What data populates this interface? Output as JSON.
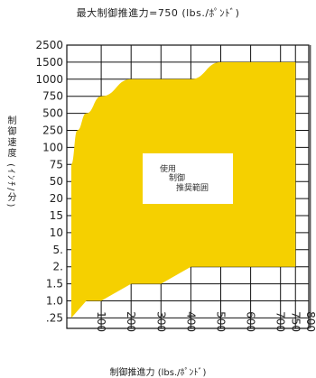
{
  "chart_data": {
    "type": "area",
    "title": "最大制御推進力=750 (lbs./ﾎﾟﾝﾄﾞ)",
    "xlabel": "制御推進力 (lbs./ﾎﾟﾝﾄﾞ)",
    "ylabel": "制御速度 (ｲﾝﾁ/分)",
    "x_ticks": [
      100,
      200,
      300,
      400,
      500,
      600,
      700,
      750,
      800
    ],
    "y_ticks": [
      ".25",
      "1.0",
      "1.5",
      "2.",
      "5.",
      "10",
      "15",
      "20",
      "50",
      "75",
      "100",
      "250",
      "500",
      "750",
      "1000",
      "1500",
      "2500"
    ],
    "xlim": [
      0,
      800
    ],
    "grid": true,
    "fill_color": "#f5d000",
    "series": [
      {
        "role": "upper",
        "points": [
          [
            0,
            "75"
          ],
          [
            20,
            "250"
          ],
          [
            50,
            "500"
          ],
          [
            100,
            "750"
          ],
          [
            200,
            "1000"
          ],
          [
            300,
            "1000"
          ],
          [
            400,
            "1000"
          ],
          [
            500,
            "1500"
          ],
          [
            600,
            "1500"
          ],
          [
            700,
            "1500"
          ],
          [
            750,
            "1500"
          ]
        ]
      },
      {
        "role": "lower",
        "points": [
          [
            0,
            ".25"
          ],
          [
            50,
            "1.0"
          ],
          [
            100,
            "1.0"
          ],
          [
            200,
            "1.5"
          ],
          [
            300,
            "1.5"
          ],
          [
            400,
            "2."
          ],
          [
            500,
            "2."
          ],
          [
            600,
            "2."
          ],
          [
            700,
            "2."
          ],
          [
            750,
            "2."
          ]
        ]
      }
    ],
    "annotation": [
      "使用",
      "制御",
      "推奨範囲"
    ]
  }
}
